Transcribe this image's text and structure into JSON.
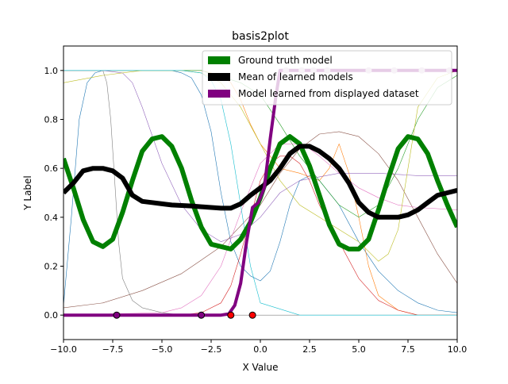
{
  "chart_data": {
    "type": "line",
    "title": "basis2plot",
    "xlabel": "X Value",
    "ylabel": "Y Label",
    "xlim": [
      -10,
      10
    ],
    "ylim": [
      -0.1,
      1.1
    ],
    "xticks": [
      -10.0,
      -7.5,
      -5.0,
      -2.5,
      0.0,
      2.5,
      5.0,
      7.5,
      10.0
    ],
    "xtick_labels": [
      "−10.0",
      "−7.5",
      "−5.0",
      "−2.5",
      "0.0",
      "2.5",
      "5.0",
      "7.5",
      "10.0"
    ],
    "yticks": [
      0.0,
      0.2,
      0.4,
      0.6,
      0.8,
      1.0
    ],
    "ytick_labels": [
      "0.0",
      "0.2",
      "0.4",
      "0.6",
      "0.8",
      "1.0"
    ],
    "grid": false,
    "legend_position": "upper right",
    "legend": [
      {
        "label": "Ground truth model",
        "color": "#008000"
      },
      {
        "label": "Mean of learned models",
        "color": "#000000"
      },
      {
        "label": "Model learned from displayed dataset",
        "color": "#800080"
      }
    ],
    "series": [
      {
        "name": "Ground truth model",
        "color": "#008000",
        "width": 6,
        "x": [
          -10,
          -9.5,
          -9,
          -8.5,
          -8,
          -7.5,
          -7,
          -6.5,
          -6,
          -5.5,
          -5,
          -4.5,
          -4,
          -3.5,
          -3,
          -2.5,
          -2,
          -1.5,
          -1,
          -0.5,
          0,
          0.5,
          1,
          1.5,
          2,
          2.5,
          3,
          3.5,
          4,
          4.5,
          5,
          5.5,
          6,
          6.5,
          7,
          7.5,
          8,
          8.5,
          9,
          9.5,
          10
        ],
        "y": [
          0.64,
          0.52,
          0.39,
          0.3,
          0.28,
          0.31,
          0.42,
          0.55,
          0.67,
          0.72,
          0.73,
          0.69,
          0.6,
          0.47,
          0.36,
          0.29,
          0.28,
          0.27,
          0.31,
          0.38,
          0.48,
          0.6,
          0.7,
          0.73,
          0.7,
          0.61,
          0.49,
          0.37,
          0.29,
          0.27,
          0.27,
          0.31,
          0.43,
          0.56,
          0.68,
          0.73,
          0.72,
          0.66,
          0.55,
          0.45,
          0.36
        ]
      },
      {
        "name": "Mean of learned models",
        "color": "#000000",
        "width": 6,
        "x": [
          -10,
          -9.5,
          -9,
          -8.5,
          -8,
          -7.5,
          -7,
          -6.5,
          -6,
          -5.5,
          -5,
          -4.5,
          -4,
          -3.5,
          -3,
          -2.5,
          -2,
          -1.5,
          -1,
          -0.5,
          0,
          0.5,
          1,
          1.5,
          2,
          2.5,
          3,
          3.5,
          4,
          4.5,
          5,
          5.5,
          6,
          6.5,
          7,
          7.5,
          8,
          8.5,
          9,
          9.5,
          10
        ],
        "y": [
          0.5,
          0.54,
          0.59,
          0.6,
          0.6,
          0.59,
          0.56,
          0.49,
          0.465,
          0.46,
          0.455,
          0.45,
          0.448,
          0.446,
          0.443,
          0.44,
          0.437,
          0.437,
          0.455,
          0.49,
          0.52,
          0.55,
          0.6,
          0.66,
          0.69,
          0.69,
          0.67,
          0.64,
          0.6,
          0.54,
          0.46,
          0.42,
          0.4,
          0.4,
          0.4,
          0.41,
          0.43,
          0.46,
          0.49,
          0.5,
          0.51
        ]
      },
      {
        "name": "Model learned from displayed dataset",
        "color": "#800080",
        "width": 4,
        "x": [
          -10,
          -7.5,
          -5,
          -2.5,
          -2,
          -1.6,
          -1.3,
          -1.0,
          -0.7,
          -0.4,
          -0.1,
          0.2,
          0.5,
          0.8,
          1.0,
          1.5,
          2,
          3,
          5,
          7,
          9,
          10
        ],
        "y": [
          0.0,
          0.0,
          0.0,
          0.0,
          0.0,
          0.005,
          0.04,
          0.13,
          0.3,
          0.44,
          0.46,
          0.52,
          0.72,
          0.9,
          1.0,
          1.0,
          1.0,
          1.0,
          1.0,
          1.0,
          1.0,
          1.0
        ]
      }
    ],
    "basis_functions": [
      {
        "color": "#1f77b4",
        "x": [
          -10,
          -9.6,
          -9.2,
          -8.8,
          -8.4,
          -8,
          -7.5,
          -7,
          -6.5,
          -6,
          -5.5,
          -5,
          -4.5,
          -4,
          -3.5,
          -3,
          -2.5,
          -2,
          -1.5,
          -1,
          -0.5,
          0,
          0.5,
          1,
          1.5,
          2,
          2.5,
          3,
          4,
          5,
          6,
          7,
          8,
          9,
          10
        ],
        "y": [
          0.04,
          0.4,
          0.8,
          0.95,
          0.99,
          1.0,
          1.0,
          1.0,
          1.0,
          1.0,
          1.0,
          1.0,
          1.0,
          0.99,
          0.97,
          0.9,
          0.75,
          0.5,
          0.3,
          0.2,
          0.16,
          0.14,
          0.18,
          0.3,
          0.45,
          0.55,
          0.57,
          0.55,
          0.45,
          0.3,
          0.18,
          0.1,
          0.05,
          0.02,
          0.01
        ]
      },
      {
        "color": "#ff7f0e",
        "x": [
          -10,
          -5,
          -3,
          -2,
          -1.5,
          -1,
          -0.5,
          0,
          1,
          2,
          3,
          3.5,
          4,
          4.5,
          5,
          5.5,
          6,
          7,
          8,
          10
        ],
        "y": [
          1.0,
          1.0,
          1.0,
          0.98,
          0.95,
          0.88,
          0.78,
          0.7,
          0.6,
          0.58,
          0.55,
          0.6,
          0.7,
          0.58,
          0.4,
          0.2,
          0.08,
          0.02,
          0.0,
          0.0
        ]
      },
      {
        "color": "#2ca02c",
        "x": [
          -10,
          -8,
          -5,
          -3,
          -1,
          0,
          1,
          2,
          3,
          4,
          5,
          6,
          7,
          8,
          9,
          10
        ],
        "y": [
          1.0,
          1.0,
          1.0,
          1.0,
          0.95,
          0.9,
          0.78,
          0.65,
          0.55,
          0.45,
          0.4,
          0.45,
          0.6,
          0.8,
          0.93,
          0.98
        ]
      },
      {
        "color": "#d62728",
        "x": [
          -10,
          -4,
          -3,
          -2,
          -1.5,
          -1,
          -0.5,
          0,
          0.5,
          1,
          1.5,
          2,
          2.5,
          3,
          4,
          5,
          6,
          7,
          8,
          10
        ],
        "y": [
          0.0,
          0.0,
          0.01,
          0.05,
          0.12,
          0.25,
          0.4,
          0.55,
          0.62,
          0.65,
          0.65,
          0.62,
          0.55,
          0.45,
          0.3,
          0.15,
          0.06,
          0.02,
          0.0,
          0.0
        ]
      },
      {
        "color": "#9467bd",
        "x": [
          -10,
          -8,
          -7,
          -6.5,
          -6,
          -5,
          -4,
          -3,
          -2,
          -1,
          0,
          1,
          2,
          4,
          6,
          8,
          10
        ],
        "y": [
          1.0,
          1.0,
          0.99,
          0.95,
          0.85,
          0.62,
          0.45,
          0.35,
          0.3,
          0.33,
          0.4,
          0.5,
          0.55,
          0.58,
          0.58,
          0.57,
          0.57
        ]
      },
      {
        "color": "#8c564b",
        "x": [
          -10,
          -8,
          -6,
          -4,
          -2,
          0,
          1,
          2,
          3,
          4,
          5,
          6,
          7,
          8,
          9,
          10
        ],
        "y": [
          0.03,
          0.05,
          0.1,
          0.17,
          0.28,
          0.45,
          0.58,
          0.68,
          0.74,
          0.75,
          0.73,
          0.66,
          0.55,
          0.4,
          0.25,
          0.13
        ]
      },
      {
        "color": "#e377c2",
        "x": [
          -10,
          -5,
          -4,
          -3,
          -2,
          -1,
          0,
          1,
          2,
          2.5,
          3,
          4,
          5,
          6,
          7,
          8,
          10
        ],
        "y": [
          0.0,
          0.01,
          0.03,
          0.08,
          0.2,
          0.42,
          0.62,
          0.7,
          0.7,
          0.68,
          0.65,
          0.58,
          0.52,
          0.48,
          0.45,
          0.44,
          0.43
        ]
      },
      {
        "color": "#7f7f7f",
        "x": [
          -10,
          -8.5,
          -8,
          -7.8,
          -7.6,
          -7.4,
          -7.2,
          -7,
          -6.5,
          -6,
          -5,
          -4,
          -2,
          0,
          2,
          4,
          6,
          8,
          10
        ],
        "y": [
          1.0,
          1.0,
          1.0,
          0.95,
          0.8,
          0.55,
          0.3,
          0.15,
          0.06,
          0.03,
          0.01,
          0.0,
          0.0,
          0.0,
          0.0,
          0.0,
          0.0,
          0.0,
          0.0
        ]
      },
      {
        "color": "#bcbd22",
        "x": [
          -10,
          -8,
          -6,
          -4,
          -3,
          -2,
          -1,
          0,
          1,
          2,
          3,
          4,
          5,
          6,
          6.5,
          7,
          7.5,
          8,
          9,
          10
        ],
        "y": [
          0.95,
          0.98,
          1.0,
          1.0,
          0.99,
          0.95,
          0.85,
          0.7,
          0.55,
          0.45,
          0.4,
          0.35,
          0.3,
          0.22,
          0.25,
          0.35,
          0.6,
          0.85,
          0.97,
          1.0
        ]
      },
      {
        "color": "#17becf",
        "x": [
          -10,
          -6,
          -4,
          -3,
          -2.5,
          -2,
          -1.5,
          -1,
          -0.5,
          0,
          2,
          5,
          10
        ],
        "y": [
          1.0,
          1.0,
          1.0,
          0.99,
          0.96,
          0.88,
          0.7,
          0.45,
          0.2,
          0.05,
          0.0,
          0.0,
          0.0
        ]
      }
    ],
    "data_points": [
      {
        "x": -7.3,
        "y": 0.0,
        "color": "#800080"
      },
      {
        "x": -3.0,
        "y": 0.0,
        "color": "#800080"
      },
      {
        "x": -1.5,
        "y": 0.0,
        "color": "#ff0000"
      },
      {
        "x": -0.4,
        "y": 0.0,
        "color": "#ff0000"
      },
      {
        "x": 1.3,
        "y": 1.0,
        "color": "#d8bfd8"
      },
      {
        "x": 2.1,
        "y": 1.0,
        "color": "#d8bfd8"
      },
      {
        "x": 2.7,
        "y": 1.0,
        "color": "#d8bfd8"
      },
      {
        "x": 3.4,
        "y": 1.0,
        "color": "#d8bfd8"
      },
      {
        "x": 5.5,
        "y": 1.0,
        "color": "#d8bfd8"
      },
      {
        "x": 6.8,
        "y": 1.0,
        "color": "#d8bfd8"
      },
      {
        "x": 8.2,
        "y": 1.0,
        "color": "#d8bfd8"
      },
      {
        "x": 9.6,
        "y": 1.0,
        "color": "#d8bfd8"
      }
    ]
  }
}
